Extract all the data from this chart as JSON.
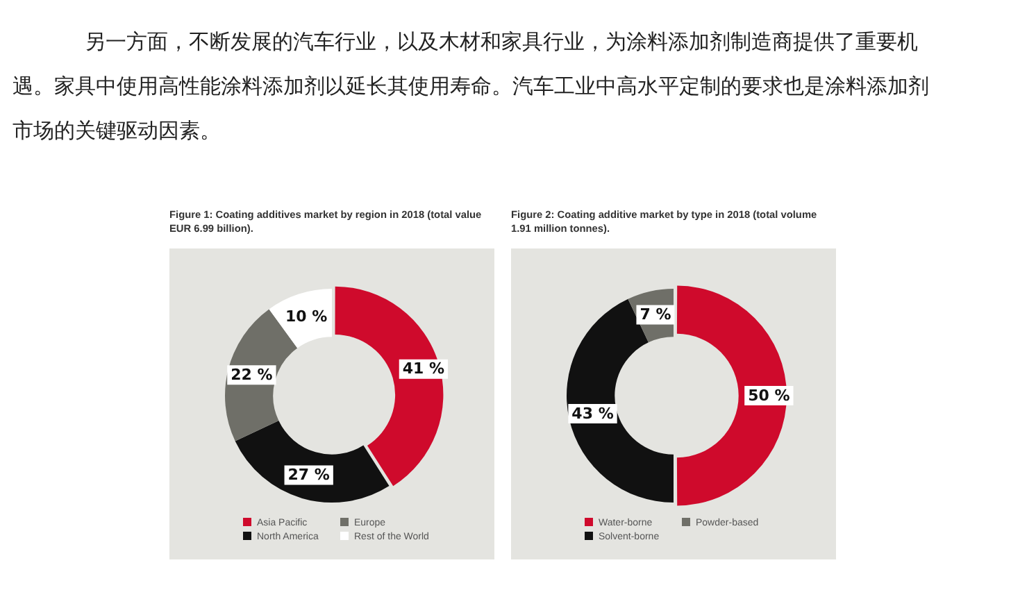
{
  "chart_data": [
    {
      "type": "other",
      "annotations": [
        "另一方面，不断发展的汽车行业，以及木材和家具行业，为涂料添加剂制造商提供了重要机遇。家具中使用高性能涂料添加剂以延长其使用寿命。汽车工业中高水平定制的要求也是涂料添加剂市场的关键驱动因素。"
      ]
    },
    {
      "type": "donut",
      "title": "Figure 1: Coating additives market by region in 2018 (total value EUR 6.99 billion).",
      "categories": [
        "Asia Pacific",
        "North America",
        "Europe",
        "Rest of the World"
      ],
      "values": [
        41,
        27,
        22,
        10
      ],
      "colors": [
        "#cf0a2c",
        "#111111",
        "#6f6f68",
        "#ffffff"
      ],
      "value_labels": [
        "41 %",
        "27 %",
        "22 %",
        "10 %"
      ],
      "legend": "bottom"
    },
    {
      "type": "donut",
      "title": "Figure 2: Coating additive market by type in 2018 (total volume 1.91 million tonnes).",
      "categories": [
        "Water-borne",
        "Solvent-borne",
        "Powder-based"
      ],
      "values": [
        50,
        43,
        7
      ],
      "colors": [
        "#cf0a2c",
        "#111111",
        "#6f6f68"
      ],
      "value_labels": [
        "50 %",
        "43 %",
        "7 %"
      ],
      "legend": "bottom"
    }
  ]
}
